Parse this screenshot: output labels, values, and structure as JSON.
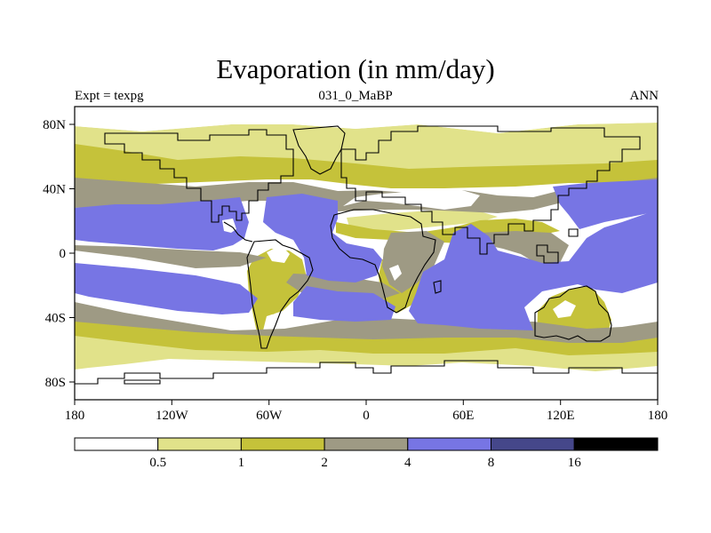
{
  "title": "Evaporation (in mm/day)",
  "left_label": "Expt = texpg",
  "center_label": "031_0_MaBP",
  "right_label": "ANN",
  "colors": {
    "white": "#ffffff",
    "lightyellow": "#e1e28a",
    "olive": "#c5c23a",
    "grey": "#9e9a84",
    "blue": "#7775e4",
    "darkblue": "#45478a",
    "black": "#000000"
  },
  "x_ticks": [
    "180",
    "120W",
    "60W",
    "0",
    "60E",
    "120E",
    "180"
  ],
  "y_ticks": [
    "80N",
    "40N",
    "0",
    "40S",
    "80S"
  ],
  "colorbar": {
    "labels": [
      "0.5",
      "1",
      "2",
      "4",
      "8",
      "16"
    ],
    "bins": [
      "white",
      "lightyellow",
      "olive",
      "grey",
      "blue",
      "darkblue",
      "black"
    ]
  }
}
